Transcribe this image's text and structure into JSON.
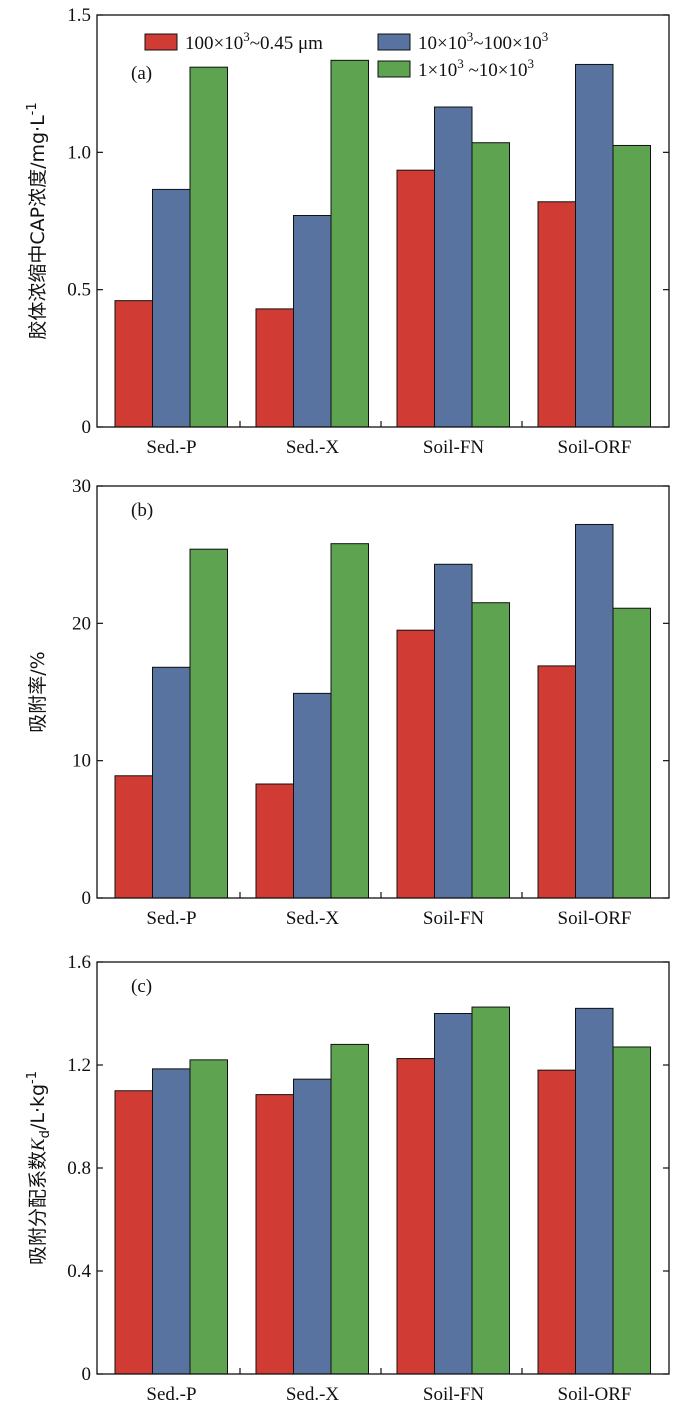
{
  "colors": {
    "series0": "#d03b33",
    "series1": "#5873a0",
    "series2": "#5ea34f"
  },
  "legend": {
    "entries": [
      {
        "pre": "100×10",
        "sup": "3",
        "post": "~0.45 μm"
      },
      {
        "pre": "10×10",
        "sup": "3",
        "mid": "~100×10",
        "sup2": "3"
      },
      {
        "pre": "1×10",
        "sup": "3",
        "mid": " ~10×10",
        "sup2": "3"
      }
    ]
  },
  "chart_data": [
    {
      "type": "bar",
      "panel_label": "(a)",
      "title": "",
      "xlabel": "",
      "ylabel": "胶体浓缩中CAP浓度/mg·L",
      "ylabel_sup": "-1",
      "categories": [
        "Sed.-P",
        "Sed.-X",
        "Soil-FN",
        "Soil-ORF"
      ],
      "ylim": [
        0,
        1.5
      ],
      "yticks": [
        0,
        0.5,
        1.0,
        1.5
      ],
      "ytick_labels": [
        "0",
        "0.5",
        "1.0",
        "1.5"
      ],
      "grid": false,
      "legend_position": "top",
      "series": [
        {
          "name": "100×10^3~0.45 μm",
          "values": [
            0.46,
            0.43,
            0.935,
            0.82
          ]
        },
        {
          "name": "10×10^3~100×10^3",
          "values": [
            0.865,
            0.77,
            1.165,
            1.32
          ]
        },
        {
          "name": "1×10^3~10×10^3",
          "values": [
            1.31,
            1.335,
            1.035,
            1.025
          ]
        }
      ]
    },
    {
      "type": "bar",
      "panel_label": "(b)",
      "title": "",
      "xlabel": "",
      "ylabel": "吸附率/%",
      "categories": [
        "Sed.-P",
        "Sed.-X",
        "Soil-FN",
        "Soil-ORF"
      ],
      "ylim": [
        0,
        30
      ],
      "yticks": [
        0,
        10,
        20,
        30
      ],
      "ytick_labels": [
        "0",
        "10",
        "20",
        "30"
      ],
      "grid": false,
      "series": [
        {
          "name": "100×10^3~0.45 μm",
          "values": [
            8.9,
            8.3,
            19.5,
            16.9
          ]
        },
        {
          "name": "10×10^3~100×10^3",
          "values": [
            16.8,
            14.9,
            24.3,
            27.2
          ]
        },
        {
          "name": "1×10^3~10×10^3",
          "values": [
            25.4,
            25.8,
            21.5,
            21.1
          ]
        }
      ]
    },
    {
      "type": "bar",
      "panel_label": "(c)",
      "title": "",
      "xlabel": "",
      "ylabel": "吸附分配系数",
      "ylabel_italic": "K",
      "ylabel_sub": "d",
      "ylabel_unit": "/L·kg",
      "ylabel_sup": "-1",
      "categories": [
        "Sed.-P",
        "Sed.-X",
        "Soil-FN",
        "Soil-ORF"
      ],
      "ylim": [
        0,
        1.6
      ],
      "yticks": [
        0,
        0.4,
        0.8,
        1.2,
        1.6
      ],
      "ytick_labels": [
        "0",
        "0.4",
        "0.8",
        "1.2",
        "1.6"
      ],
      "grid": false,
      "series": [
        {
          "name": "100×10^3~0.45 μm",
          "values": [
            1.1,
            1.085,
            1.225,
            1.18
          ]
        },
        {
          "name": "10×10^3~100×10^3",
          "values": [
            1.185,
            1.145,
            1.4,
            1.42
          ]
        },
        {
          "name": "1×10^3~10×10^3",
          "values": [
            1.22,
            1.28,
            1.425,
            1.27
          ]
        }
      ]
    }
  ]
}
